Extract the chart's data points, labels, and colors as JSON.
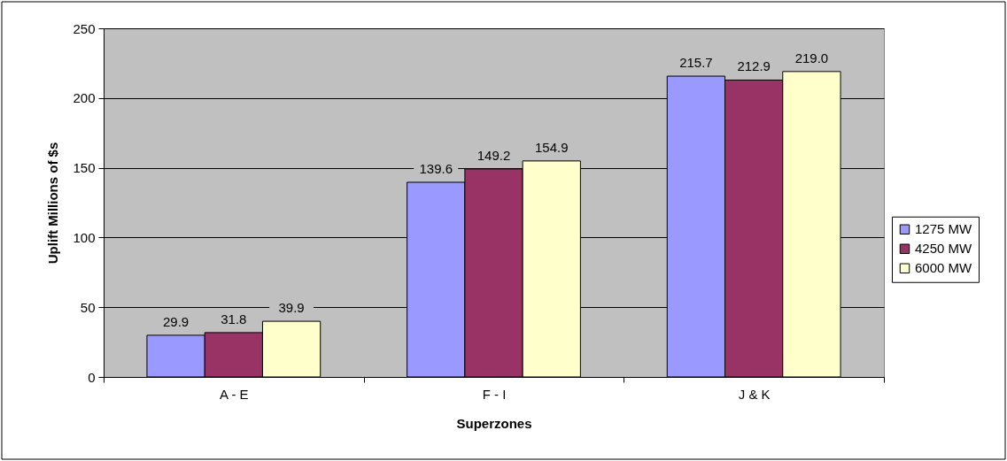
{
  "chart_data": {
    "type": "bar",
    "xlabel": "Superzones",
    "ylabel": "Uplift Millions of $s",
    "categories": [
      "A - E",
      "F - I",
      "J & K"
    ],
    "series": [
      {
        "name": "1275 MW",
        "color": "#9999ff",
        "values": [
          29.9,
          139.6,
          215.7
        ],
        "value_labels": [
          "29.9",
          "139.6",
          "215.7"
        ]
      },
      {
        "name": "4250 MW",
        "color": "#993366",
        "values": [
          31.8,
          149.2,
          212.9
        ],
        "value_labels": [
          "31.8",
          "149.2",
          "212.9"
        ]
      },
      {
        "name": "6000 MW",
        "color": "#ffffcc",
        "values": [
          39.9,
          154.9,
          219.0
        ],
        "value_labels": [
          "39.9",
          "154.9",
          "219.0"
        ]
      }
    ],
    "ylim": [
      0,
      250
    ],
    "yticks": [
      0,
      50,
      100,
      150,
      200,
      250
    ],
    "grid": "y",
    "legend": "right"
  }
}
